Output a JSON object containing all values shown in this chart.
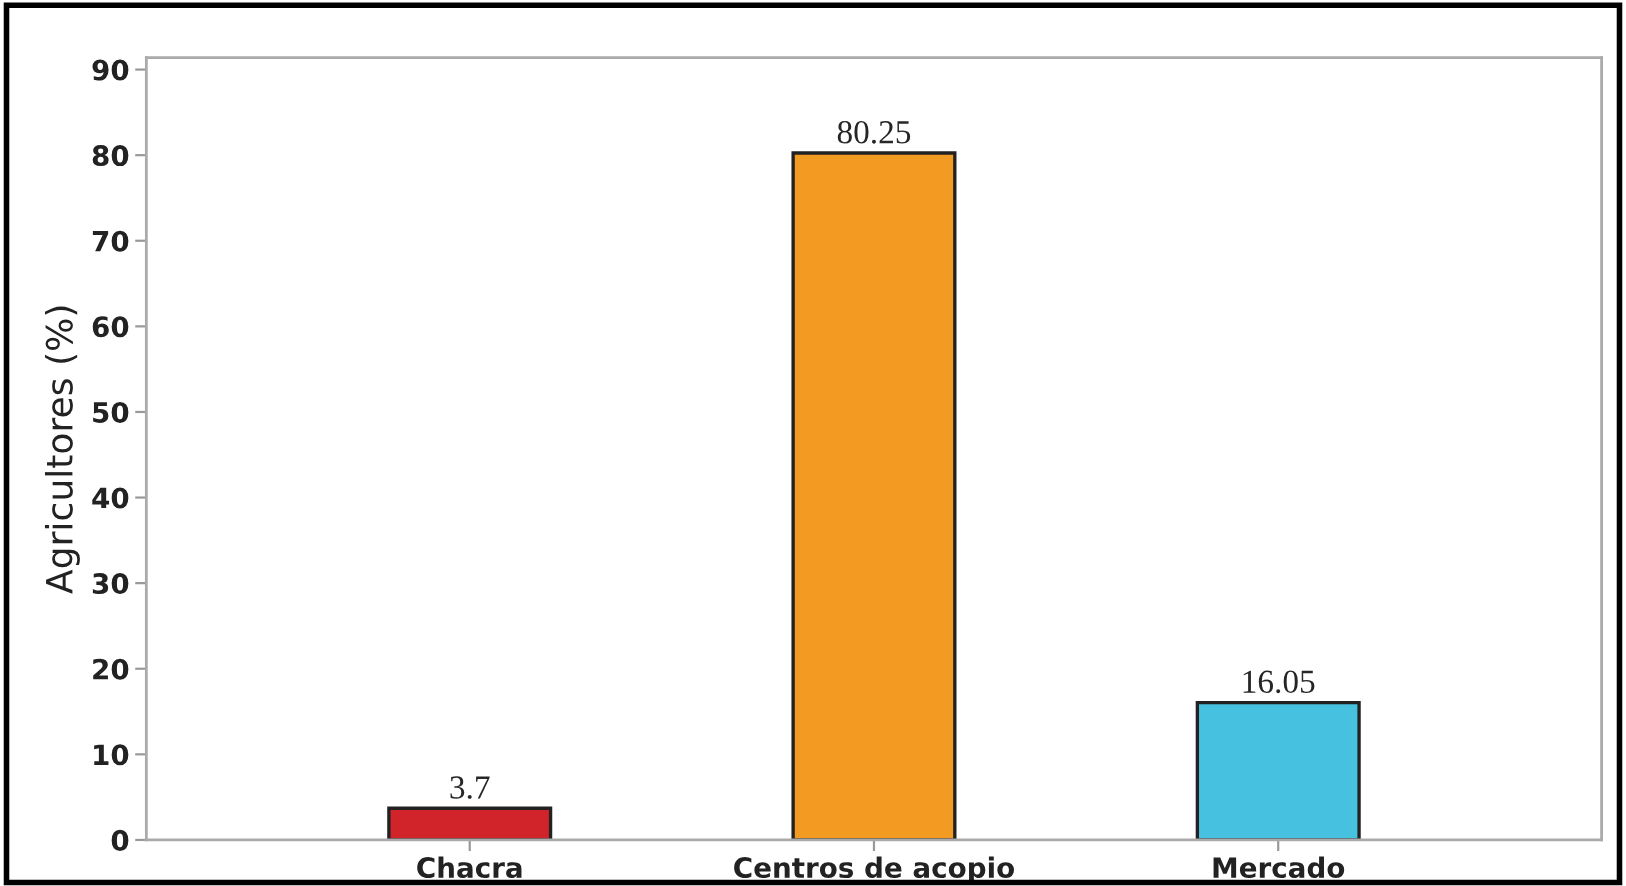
{
  "chart_data": {
    "type": "bar",
    "ylabel": "Agricultores (%)",
    "categories": [
      "Chacra",
      "Centros de acopio",
      "Mercado"
    ],
    "values": [
      3.7,
      80.25,
      16.05
    ],
    "colors": [
      "#d0232a",
      "#f39a22",
      "#47c1e0"
    ],
    "ylim": [
      0,
      91.4
    ],
    "yticks": [
      0,
      10,
      20,
      30,
      40,
      50,
      60,
      70,
      80,
      90
    ],
    "data_labels": true,
    "grid": false,
    "legend": false
  }
}
